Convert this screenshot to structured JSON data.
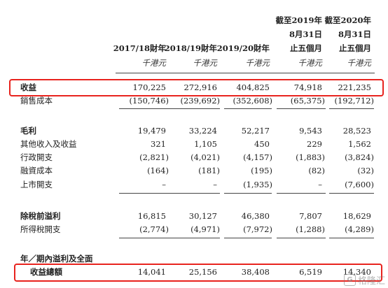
{
  "columns": [
    {
      "header": [
        "2017/18財年"
      ],
      "unit": "千港元"
    },
    {
      "header": [
        "2018/19財年"
      ],
      "unit": "千港元"
    },
    {
      "header": [
        "2019/20財年"
      ],
      "unit": "千港元"
    },
    {
      "header": [
        "截至2019年",
        "8月31日",
        "止五個月"
      ],
      "unit": "千港元"
    },
    {
      "header": [
        "截至2020年",
        "8月31日",
        "止五個月"
      ],
      "unit": "千港元"
    }
  ],
  "rows": [
    {
      "label": "收益",
      "bold": true,
      "values": [
        "170,225",
        "272,916",
        "404,825",
        "74,918",
        "221,235"
      ]
    },
    {
      "label": "銷售成本",
      "bold": false,
      "values": [
        "(150,746)",
        "(239,692)",
        "(352,608)",
        "(65,375)",
        "(192,712)"
      ]
    },
    {
      "label": "毛利",
      "bold": true,
      "values": [
        "19,479",
        "33,224",
        "52,217",
        "9,543",
        "28,523"
      ]
    },
    {
      "label": "其他收入及收益",
      "bold": false,
      "values": [
        "321",
        "1,105",
        "450",
        "229",
        "1,562"
      ]
    },
    {
      "label": "行政開支",
      "bold": false,
      "values": [
        "(2,821)",
        "(4,021)",
        "(4,157)",
        "(1,883)",
        "(3,824)"
      ]
    },
    {
      "label": "融資成本",
      "bold": false,
      "values": [
        "(164)",
        "(181)",
        "(195)",
        "(82)",
        "(32)"
      ]
    },
    {
      "label": "上市開支",
      "bold": false,
      "values": [
        "–",
        "–",
        "(1,935)",
        "–",
        "(7,600)"
      ]
    },
    {
      "label": "除稅前溢利",
      "bold": true,
      "values": [
        "16,815",
        "30,127",
        "46,380",
        "7,807",
        "18,629"
      ]
    },
    {
      "label": "所得稅開支",
      "bold": false,
      "values": [
        "(2,774)",
        "(4,971)",
        "(7,972)",
        "(1,288)",
        "(4,289)"
      ]
    },
    {
      "label": "收益總額",
      "bold": true,
      "values": [
        "14,041",
        "25,156",
        "38,408",
        "6,519",
        "14,340"
      ]
    }
  ],
  "section_heading": "年／期內溢利及全面",
  "watermark": "格隆汇",
  "watermark_logo": "G",
  "highlight_color": "#e8231e"
}
